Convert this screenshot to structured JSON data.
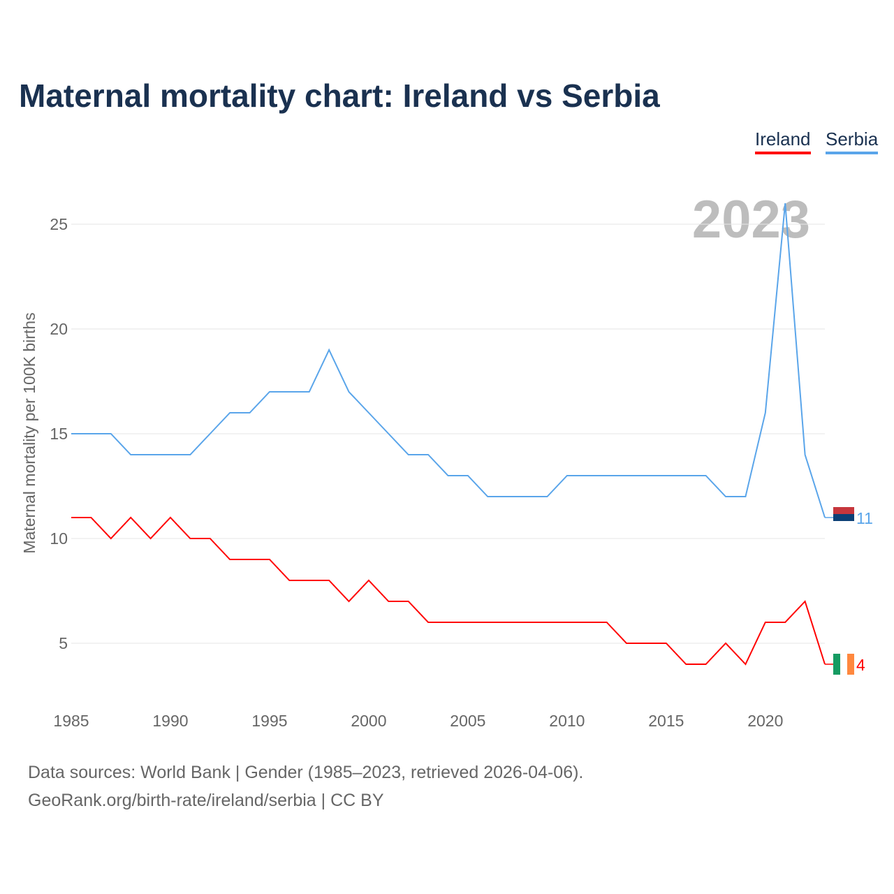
{
  "chart_data": {
    "type": "line",
    "title": "Maternal mortality chart: Ireland vs Serbia",
    "xlabel": "",
    "ylabel": "Maternal mortality per 100K births",
    "year_watermark": "2023",
    "x": [
      1985,
      1986,
      1987,
      1988,
      1989,
      1990,
      1991,
      1992,
      1993,
      1994,
      1995,
      1996,
      1997,
      1998,
      1999,
      2000,
      2001,
      2002,
      2003,
      2004,
      2005,
      2006,
      2007,
      2008,
      2009,
      2010,
      2011,
      2012,
      2013,
      2014,
      2015,
      2016,
      2017,
      2018,
      2019,
      2020,
      2021,
      2022,
      2023
    ],
    "xlim": [
      1985,
      2023
    ],
    "ylim": [
      2.5,
      27
    ],
    "xticks": [
      "1985",
      "1990",
      "1995",
      "2000",
      "2005",
      "2010",
      "2015",
      "2020"
    ],
    "yticks": [
      "5",
      "10",
      "15",
      "20",
      "25"
    ],
    "grid": true,
    "legend_position": "top-right",
    "series": [
      {
        "name": "Ireland",
        "color": "#ff0000",
        "end_label": "4",
        "values": [
          11,
          11,
          10,
          11,
          10,
          11,
          10,
          10,
          9,
          9,
          9,
          8,
          8,
          8,
          7,
          8,
          7,
          7,
          6,
          6,
          6,
          6,
          6,
          6,
          6,
          6,
          6,
          6,
          5,
          5,
          5,
          4,
          4,
          5,
          4,
          6,
          6,
          7,
          4
        ]
      },
      {
        "name": "Serbia",
        "color": "#5aa5ea",
        "end_label": "11",
        "values": [
          15,
          15,
          15,
          14,
          14,
          14,
          14,
          15,
          16,
          16,
          17,
          17,
          17,
          19,
          17,
          16,
          15,
          14,
          14,
          13,
          13,
          12,
          12,
          12,
          12,
          13,
          13,
          13,
          13,
          13,
          13,
          13,
          13,
          12,
          12,
          16,
          26,
          14,
          11
        ]
      }
    ]
  },
  "footer": {
    "line1": "Data sources: World Bank | Gender (1985–2023, retrieved 2026-04-06).",
    "line2": "GeoRank.org/birth-rate/ireland/serbia | CC BY"
  }
}
